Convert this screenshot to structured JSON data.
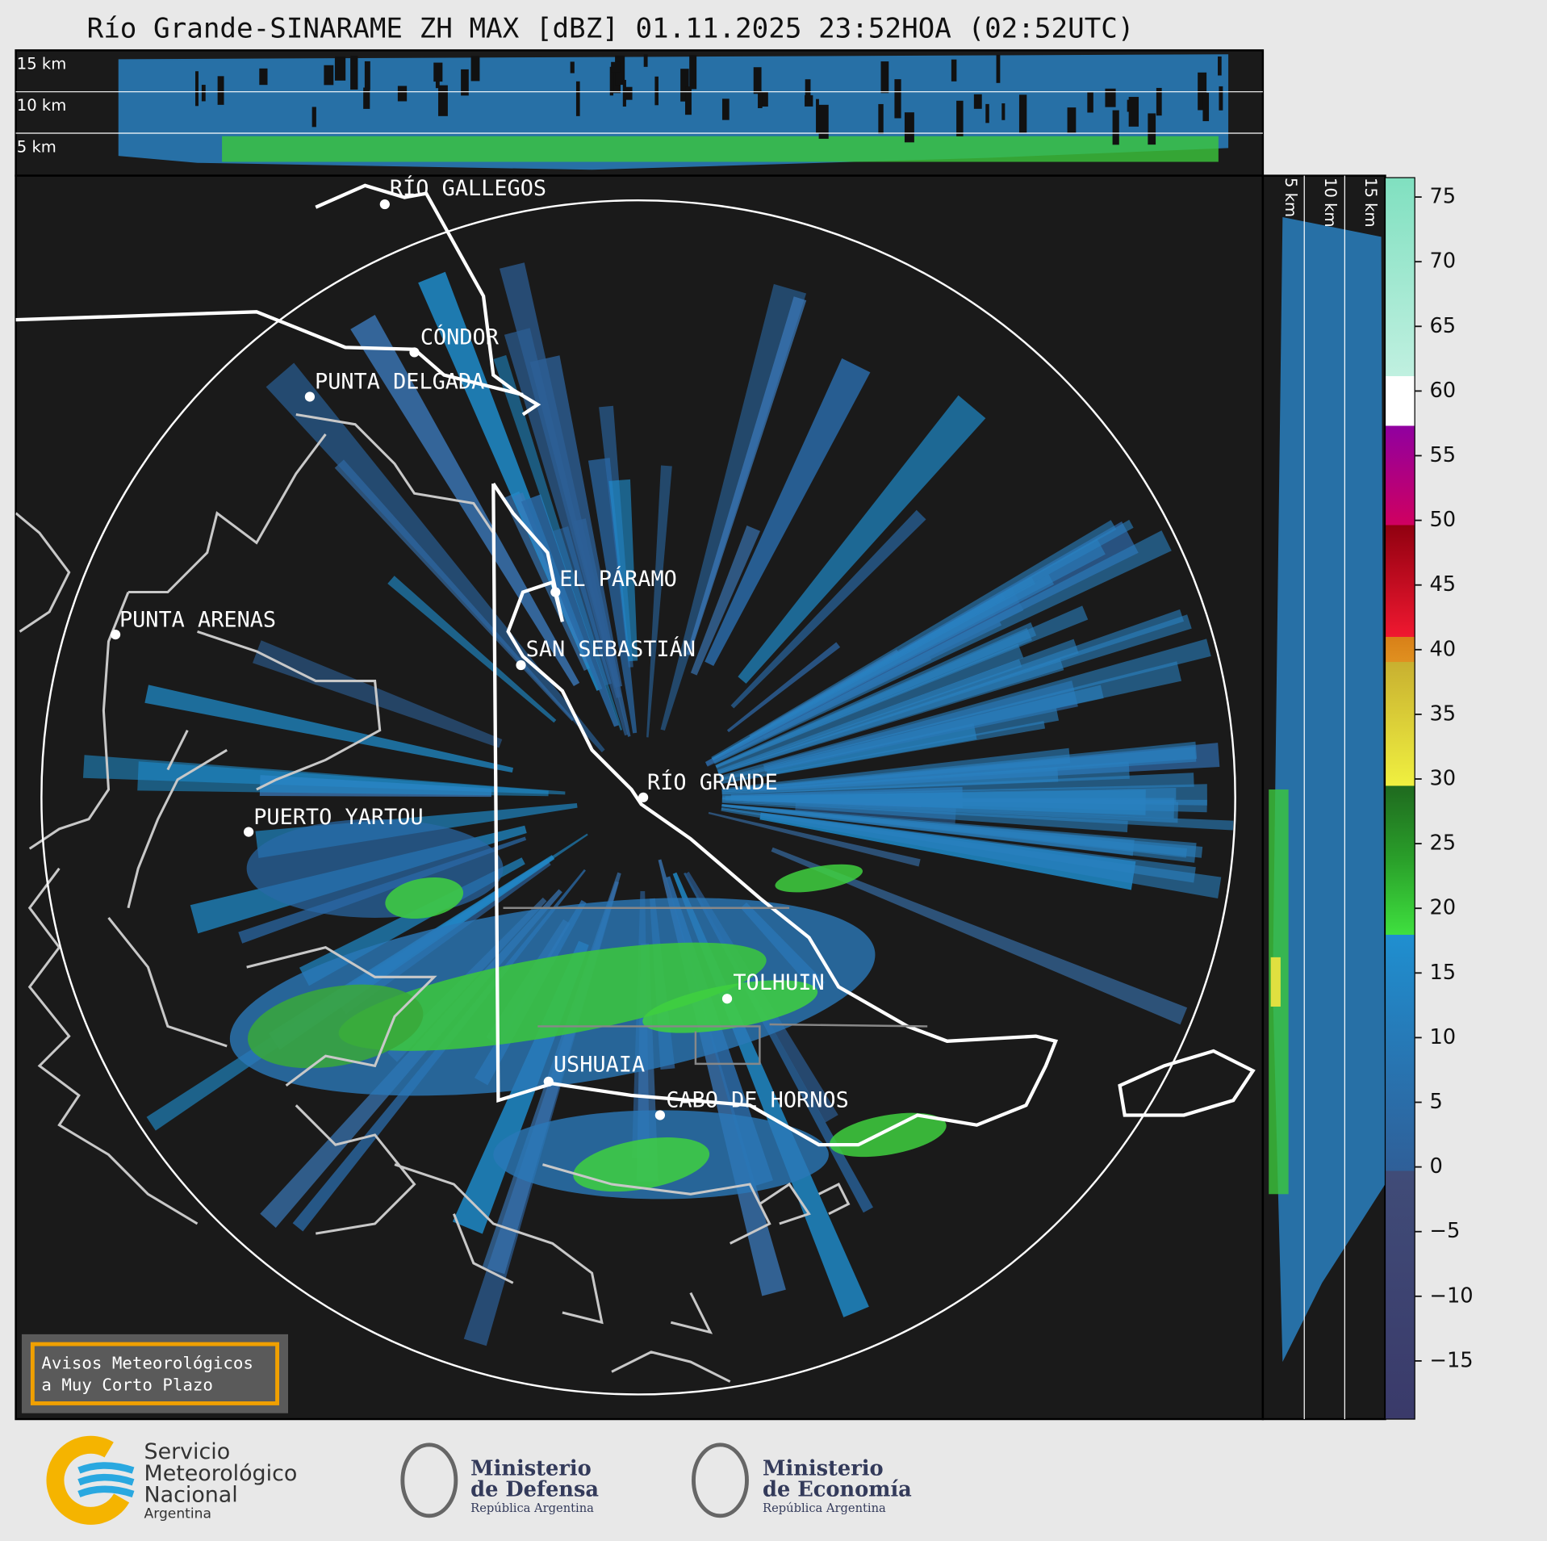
{
  "header": {
    "title": "Río Grande-SINARAME ZH MAX [dBZ] 01.11.2025 23:52HOA (02:52UTC)"
  },
  "profile_top": {
    "height_labels": [
      "15 km",
      "10 km",
      "5 km"
    ]
  },
  "profile_right": {
    "height_labels": [
      "5 km",
      "10 km",
      "15 km"
    ]
  },
  "map": {
    "places": [
      "RÍO GALLEGOS",
      "CÓNDOR",
      "PUNTA DELGADA",
      "EL PÁRAMO",
      "PUNTA ARENAS",
      "SAN SEBASTIÁN",
      "RÍO GRANDE",
      "PUERTO YARTOU",
      "TOLHUIN",
      "USHUAIA",
      "CABO DE HORNOS"
    ]
  },
  "colorbar": {
    "lim": [
      -19.5,
      76.5
    ],
    "ticks": [
      75,
      70,
      65,
      60,
      55,
      50,
      45,
      40,
      35,
      30,
      25,
      20,
      15,
      10,
      5,
      0,
      {
        "value": -5,
        "label": "−5"
      },
      {
        "value": -10,
        "label": "−10"
      },
      {
        "value": -15,
        "label": "−15"
      }
    ]
  },
  "notice": {
    "lines": [
      "Avisos Meteorológicos",
      "a Muy Corto Plazo"
    ]
  },
  "logos": [
    {
      "lines": [
        "Servicio",
        "Meteorológico",
        "Nacional",
        "Argentina"
      ]
    },
    {
      "lines": [
        "Ministerio",
        "de Defensa",
        "República Argentina"
      ]
    },
    {
      "lines": [
        "Ministerio",
        "de Economía",
        "República Argentina"
      ]
    }
  ]
}
